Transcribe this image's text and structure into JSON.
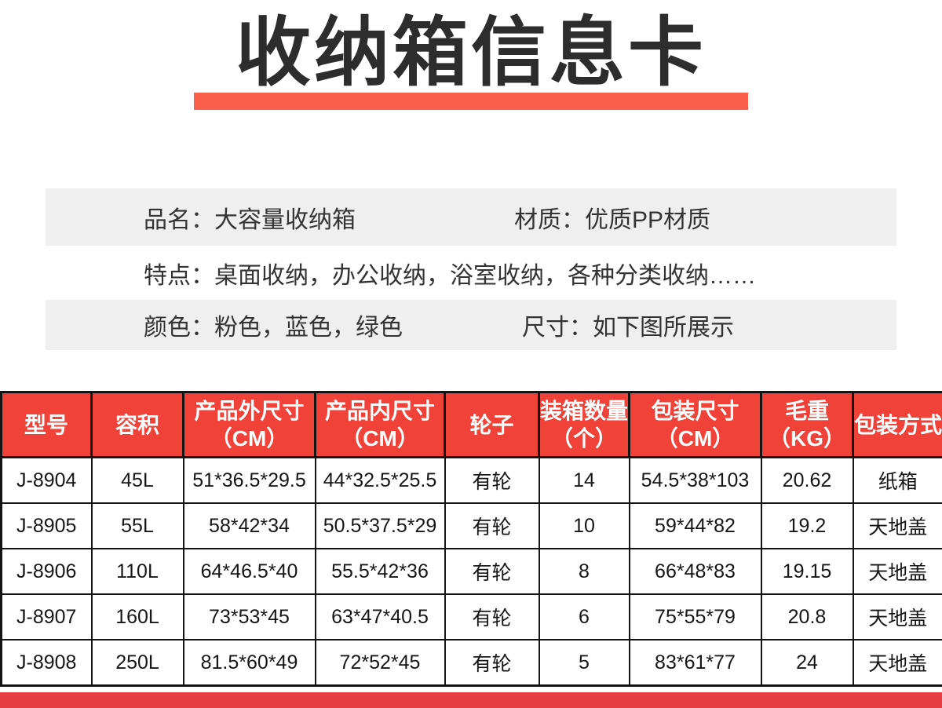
{
  "title": "收纳箱信息卡",
  "accent_colors": {
    "title_underline": "#f9604c",
    "table_header_red": "#f04238",
    "bottom_bar_red": "#e83d43",
    "band_gray": "#efefef"
  },
  "info": {
    "rows": [
      {
        "left": "品名：大容量收纳箱",
        "right": "材质：优质PP材质"
      },
      {
        "left": "特点：桌面收纳，办公收纳，浴室收纳，各种分类收纳……",
        "right": ""
      },
      {
        "left": "颜色：粉色，蓝色，绿色",
        "right": "尺寸：如下图所展示"
      }
    ]
  },
  "table": {
    "columns": [
      {
        "id": "model",
        "label": "型号"
      },
      {
        "id": "capacity",
        "label": "容积"
      },
      {
        "id": "outer-size",
        "label": "产品外尺寸\n（CM）"
      },
      {
        "id": "inner-size",
        "label": "产品内尺寸\n（CM）"
      },
      {
        "id": "wheels",
        "label": "轮子"
      },
      {
        "id": "carton-qty",
        "label": "装箱数量\n（个）"
      },
      {
        "id": "package-size",
        "label": "包装尺寸\n（CM）"
      },
      {
        "id": "gross-weight",
        "label": "毛重\n（KG）"
      },
      {
        "id": "package-type",
        "label": "包装方式"
      }
    ],
    "rows": [
      [
        "J-8904",
        "45L",
        "51*36.5*29.5",
        "44*32.5*25.5",
        "有轮",
        "14",
        "54.5*38*103",
        "20.62",
        "纸箱"
      ],
      [
        "J-8905",
        "55L",
        "58*42*34",
        "50.5*37.5*29",
        "有轮",
        "10",
        "59*44*82",
        "19.2",
        "天地盖"
      ],
      [
        "J-8906",
        "110L",
        "64*46.5*40",
        "55.5*42*36",
        "有轮",
        "8",
        "66*48*83",
        "19.15",
        "天地盖"
      ],
      [
        "J-8907",
        "160L",
        "73*53*45",
        "63*47*40.5",
        "有轮",
        "6",
        "75*55*79",
        "20.8",
        "天地盖"
      ],
      [
        "J-8908",
        "250L",
        "81.5*60*49",
        "72*52*45",
        "有轮",
        "5",
        "83*61*77",
        "24",
        "天地盖"
      ]
    ]
  }
}
